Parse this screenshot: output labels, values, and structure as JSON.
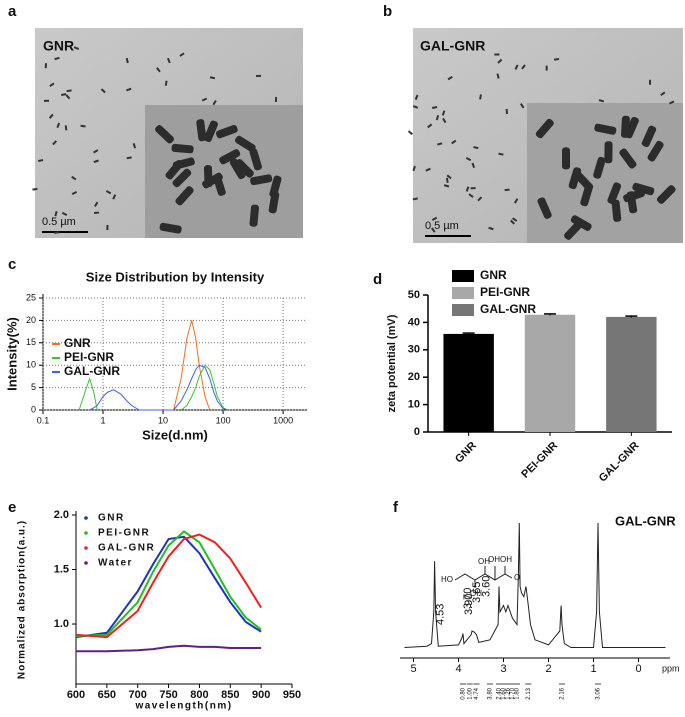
{
  "images": [
    {
      "panel_label": "a",
      "label": "GNR",
      "scale_bar": "0.5 µm"
    },
    {
      "panel_label": "b",
      "label": "GAL-GNR",
      "scale_bar": "0.5 µm"
    }
  ],
  "chart_data": [
    {
      "type": "line",
      "panel_label": "c",
      "title": "Size Distribution by Intensity",
      "xlabel": "Size(d.nm)",
      "ylabel": "Intensity(%)",
      "xscale": "log",
      "grid": true,
      "legend": "left",
      "x": [
        0.4,
        0.5,
        0.6,
        0.7,
        0.8,
        1,
        1.2,
        1.5,
        2,
        2.5,
        3,
        4,
        15,
        20,
        25,
        30,
        35,
        40,
        50,
        60,
        70,
        80,
        100,
        120
      ],
      "series": [
        {
          "name": "GNR",
          "color": "#f07020",
          "values": [
            null,
            null,
            null,
            null,
            null,
            null,
            null,
            null,
            null,
            null,
            null,
            null,
            0,
            7,
            16,
            20,
            16,
            10,
            3,
            0,
            null,
            null,
            null,
            null
          ]
        },
        {
          "name": "PEI-GNR",
          "color": "#3cc03c",
          "values": [
            0,
            4,
            7,
            4,
            0,
            null,
            null,
            null,
            null,
            null,
            null,
            null,
            null,
            0,
            1,
            3,
            5,
            7.5,
            10,
            9,
            6,
            3,
            0.5,
            0
          ]
        },
        {
          "name": "GAL-GNR",
          "color": "#4060e0",
          "values": [
            null,
            null,
            0,
            0.5,
            1,
            3,
            4,
            4.5,
            3.5,
            2,
            1,
            0,
            0,
            2,
            4.5,
            7,
            9,
            10,
            9.5,
            7,
            4,
            2,
            0.3,
            0
          ]
        }
      ],
      "xlim": [
        0.1,
        2500
      ],
      "xticks": [
        0.1,
        1,
        10,
        100,
        1000
      ],
      "ylim": [
        0,
        25
      ],
      "yticks": [
        0,
        5,
        10,
        15,
        20,
        25
      ]
    },
    {
      "type": "bar",
      "panel_label": "d",
      "ylabel": "zeta potential (mV)",
      "categories": [
        "GNR",
        "PEI-GNR",
        "GAL-GNR"
      ],
      "values": [
        35.8,
        42.8,
        42
      ],
      "errors": [
        0.3,
        0.3,
        0.3
      ],
      "colors": [
        "#000000",
        "#a8a8a8",
        "#767676"
      ],
      "ylim": [
        0,
        50
      ],
      "yticks": [
        0,
        10,
        20,
        30,
        40,
        50
      ],
      "legend": "upper left"
    },
    {
      "type": "line",
      "panel_label": "e",
      "xlabel": "wavelength(nm)",
      "ylabel": "Normalized absorption(a.u.)",
      "legend": "upper left",
      "x": [
        600,
        650,
        700,
        725,
        750,
        775,
        800,
        825,
        850,
        875,
        900
      ],
      "series": [
        {
          "name": "GNR",
          "color": "#2030c0",
          "values": [
            0.88,
            0.92,
            1.3,
            1.55,
            1.78,
            1.8,
            1.65,
            1.42,
            1.2,
            1.02,
            0.93
          ]
        },
        {
          "name": "PEI-GNR",
          "color": "#20c020",
          "values": [
            0.89,
            0.9,
            1.2,
            1.48,
            1.72,
            1.85,
            1.75,
            1.5,
            1.25,
            1.06,
            0.95
          ]
        },
        {
          "name": "GAL-GNR",
          "color": "#f02020",
          "values": [
            0.9,
            0.88,
            1.12,
            1.38,
            1.62,
            1.78,
            1.82,
            1.75,
            1.6,
            1.38,
            1.15
          ]
        },
        {
          "name": "Water",
          "color": "#602080",
          "values": [
            0.75,
            0.75,
            0.76,
            0.77,
            0.79,
            0.8,
            0.79,
            0.79,
            0.78,
            0.78,
            0.78
          ]
        }
      ],
      "xlim": [
        600,
        950
      ],
      "xticks": [
        600,
        650,
        700,
        750,
        800,
        850,
        900,
        950
      ],
      "ylim": [
        0.45,
        2.0
      ],
      "yticks": [
        {
          "value": 1.0,
          "label": "1.0"
        },
        {
          "value": 1.5,
          "label": "1.5"
        },
        {
          "value": 2.0,
          "label": "2.0"
        }
      ]
    },
    {
      "type": "line",
      "panel_label": "f",
      "title": "GAL-GNR",
      "xlabel": "ppm",
      "x": [
        5.2,
        4.7,
        4.6,
        4.55,
        4.53,
        4.51,
        4.45,
        4.0,
        3.92,
        3.9,
        3.88,
        3.72,
        3.7,
        3.65,
        3.6,
        3.55,
        3.3,
        3.12,
        3.1,
        3.08,
        3.0,
        2.95,
        2.9,
        2.8,
        2.7,
        2.67,
        2.65,
        2.63,
        2.6,
        2.55,
        2.5,
        2.45,
        2.4,
        2.3,
        2.0,
        1.75,
        1.72,
        1.7,
        1.65,
        1.5,
        1.0,
        0.93,
        0.9,
        0.87,
        0.8,
        0.0,
        -0.6
      ],
      "series": [
        {
          "color": "#222222",
          "values": [
            0.02,
            0.03,
            0.05,
            0.3,
            0.7,
            0.3,
            0.03,
            0.04,
            0.1,
            0.13,
            0.05,
            0.12,
            0.15,
            0.14,
            0.12,
            0.06,
            0.08,
            0.2,
            0.5,
            0.3,
            0.35,
            0.3,
            0.35,
            0.25,
            0.2,
            0.6,
            1.0,
            0.5,
            0.45,
            0.42,
            0.5,
            0.35,
            0.2,
            0.08,
            0.04,
            0.15,
            0.35,
            0.2,
            0.05,
            0.02,
            0.02,
            0.3,
            1.0,
            0.3,
            0.02,
            0.02,
            0.02
          ]
        }
      ],
      "xlim": [
        5.3,
        -0.7
      ],
      "xticks": [
        5,
        4,
        3,
        2,
        1,
        0
      ],
      "ylim": [
        0,
        1.0
      ],
      "annotations": [
        {
          "x": 4.53,
          "label": "4.53"
        },
        {
          "x": 3.9,
          "label": "3.90"
        },
        {
          "x": 3.7,
          "label": "3.70"
        },
        {
          "x": 3.65,
          "label": "3.65"
        },
        {
          "x": 3.6,
          "label": "3.60"
        }
      ],
      "integrals": [
        {
          "x": 3.9,
          "label": "0.80"
        },
        {
          "x": 3.75,
          "label": "1.00"
        },
        {
          "x": 3.6,
          "label": "4.74"
        },
        {
          "x": 3.3,
          "label": "3.80"
        },
        {
          "x": 3.1,
          "label": "2.40"
        },
        {
          "x": 3.0,
          "label": "1.60"
        },
        {
          "x": 2.9,
          "label": "1.26"
        },
        {
          "x": 2.8,
          "label": "1.70"
        },
        {
          "x": 2.7,
          "label": "1.80"
        },
        {
          "x": 2.45,
          "label": "2.13"
        },
        {
          "x": 1.7,
          "label": "2.16"
        },
        {
          "x": 0.9,
          "label": "3.06"
        }
      ],
      "molecule_labels": [
        "HO",
        "OH",
        "OH",
        "OH",
        "OH",
        "O"
      ]
    }
  ]
}
